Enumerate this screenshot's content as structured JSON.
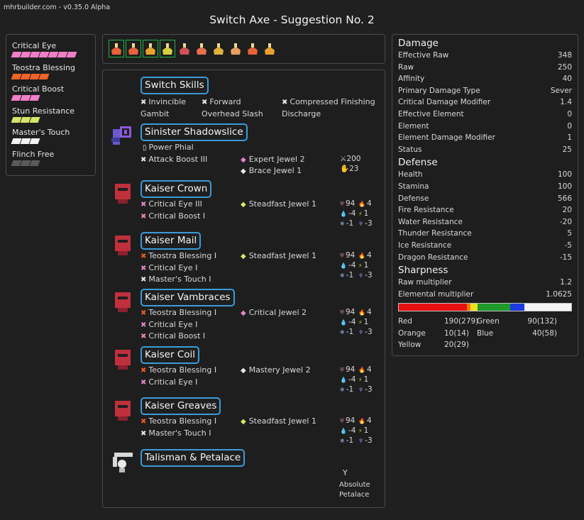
{
  "app": {
    "version": "mhrbuilder.com - v0.35.0 Alpha",
    "title": "Switch Axe - Suggestion No. 2"
  },
  "skills": [
    {
      "name": "Critical Eye",
      "level": 7,
      "max": 7,
      "color": "#f07fc8"
    },
    {
      "name": "Teostra Blessing",
      "level": 4,
      "max": 4,
      "color": "#f0642a"
    },
    {
      "name": "Critical Boost",
      "level": 3,
      "max": 3,
      "color": "#f07fc8"
    },
    {
      "name": "Stun Resistance",
      "level": 3,
      "max": 3,
      "color": "#d6e56b"
    },
    {
      "name": "Master's Touch",
      "level": 3,
      "max": 3,
      "color": "#f5f5f5"
    },
    {
      "name": "Flinch Free",
      "level": 0,
      "max": 3,
      "color": "#6a6a6a"
    }
  ],
  "decorations": [
    {
      "icon": "decoration-icon",
      "color": "#e8623a",
      "selected": true
    },
    {
      "icon": "decoration-icon",
      "color": "#e8623a",
      "selected": true
    },
    {
      "icon": "decoration-icon",
      "color": "#e8a030",
      "selected": true
    },
    {
      "icon": "decoration-icon",
      "color": "#d4d040",
      "selected": true
    },
    {
      "icon": "decoration-icon",
      "color": "#d0505a",
      "selected": false
    },
    {
      "icon": "decoration-icon",
      "color": "#e87050",
      "selected": false
    },
    {
      "icon": "decoration-icon",
      "color": "#e0b040",
      "selected": false
    },
    {
      "icon": "decoration-icon",
      "color": "#e8a060",
      "selected": false
    },
    {
      "icon": "decoration-icon",
      "color": "#e8623a",
      "selected": false
    },
    {
      "icon": "decoration-icon",
      "color": "#e8a030",
      "selected": false
    }
  ],
  "build": {
    "switch_skills": {
      "title": "Switch Skills",
      "items": [
        "Invincible",
        "Gambit",
        "Forward",
        "Overhead Slash",
        "Compressed Finishing",
        "Discharge"
      ]
    },
    "weapon": {
      "title": "Sinister Shadowslice",
      "phial": "Power Phial",
      "skill": "Attack Boost III",
      "jewels": [
        "Expert Jewel 2",
        "Brace Jewel 1"
      ],
      "attack": "200",
      "sharp": "23"
    },
    "armor": [
      {
        "title": "Kaiser Crown",
        "skills": [
          "Critical Eye III",
          "Critical Boost I"
        ],
        "jewel": "Steadfast Jewel 1",
        "def": "94",
        "fire": "4",
        "water": "-4",
        "thunder": "1",
        "ice": "-1",
        "dragon": "-3"
      },
      {
        "title": "Kaiser Mail",
        "skills": [
          "Teostra Blessing I",
          "Critical Eye I",
          "Master's Touch I"
        ],
        "jewel": "Steadfast Jewel 1",
        "def": "94",
        "fire": "4",
        "water": "-4",
        "thunder": "1",
        "ice": "-1",
        "dragon": "-3"
      },
      {
        "title": "Kaiser Vambraces",
        "skills": [
          "Teostra Blessing I",
          "Critical Eye I",
          "Critical Boost I"
        ],
        "jewel": "Critical Jewel 2",
        "def": "94",
        "fire": "4",
        "water": "-4",
        "thunder": "1",
        "ice": "-1",
        "dragon": "-3"
      },
      {
        "title": "Kaiser Coil",
        "skills": [
          "Teostra Blessing I",
          "Critical Eye I"
        ],
        "jewel": "Mastery Jewel 2",
        "def": "94",
        "fire": "4",
        "water": "-4",
        "thunder": "1",
        "ice": "-1",
        "dragon": "-3"
      },
      {
        "title": "Kaiser Greaves",
        "skills": [
          "Teostra Blessing I",
          "Master's Touch I"
        ],
        "jewel": "Steadfast Jewel 1",
        "def": "94",
        "fire": "4",
        "water": "-4",
        "thunder": "1",
        "ice": "-1",
        "dragon": "-3"
      }
    ],
    "talisman": {
      "title": "Talisman & Petalace",
      "petalace_line1": "Absolute",
      "petalace_line2": "Petalace"
    }
  },
  "stats": {
    "damage": {
      "head": "Damage",
      "rows": [
        {
          "label": "Effective Raw",
          "value": "348"
        },
        {
          "label": "Raw",
          "value": "250"
        },
        {
          "label": "Affinity",
          "value": "40"
        },
        {
          "label": "Primary Damage Type",
          "value": "Sever"
        },
        {
          "label": "Critical Damage Modifier",
          "value": "1.4"
        },
        {
          "label": "Effective Element",
          "value": "0"
        },
        {
          "label": "Element",
          "value": "0"
        },
        {
          "label": "Element Damage Modifier",
          "value": "1"
        },
        {
          "label": "Status",
          "value": "25"
        }
      ]
    },
    "defense": {
      "head": "Defense",
      "rows": [
        {
          "label": "Health",
          "value": "100"
        },
        {
          "label": "Stamina",
          "value": "100"
        },
        {
          "label": "Defense",
          "value": "566"
        },
        {
          "label": "Fire Resistance",
          "value": "20"
        },
        {
          "label": "Water Resistance",
          "value": "-20"
        },
        {
          "label": "Thunder Resistance",
          "value": "5"
        },
        {
          "label": "Ice Resistance",
          "value": "-5"
        },
        {
          "label": "Dragon Resistance",
          "value": "-15"
        }
      ]
    },
    "sharpness": {
      "head": "Sharpness",
      "rows": [
        {
          "label": "Raw multiplier",
          "value": "1.2"
        },
        {
          "label": "Elemental multiplier",
          "value": "1.0625"
        }
      ],
      "bar": [
        {
          "color": "#e81010",
          "value": 190
        },
        {
          "color": "#f07c10",
          "value": 10
        },
        {
          "color": "#f0e020",
          "value": 20
        },
        {
          "color": "#1f9a2a",
          "value": 90
        },
        {
          "color": "#1f3ae0",
          "value": 40
        },
        {
          "color": "#f4f4f4",
          "value": 130
        }
      ],
      "colors": {
        "red_label": "Red",
        "red_value": "190(279)",
        "orange_label": "Orange",
        "orange_value": "10(14)",
        "yellow_label": "Yellow",
        "yellow_value": "20(29)",
        "green_label": "Green",
        "green_value": "90(132)",
        "blue_label": "Blue",
        "blue_value": "40(58)"
      }
    }
  }
}
